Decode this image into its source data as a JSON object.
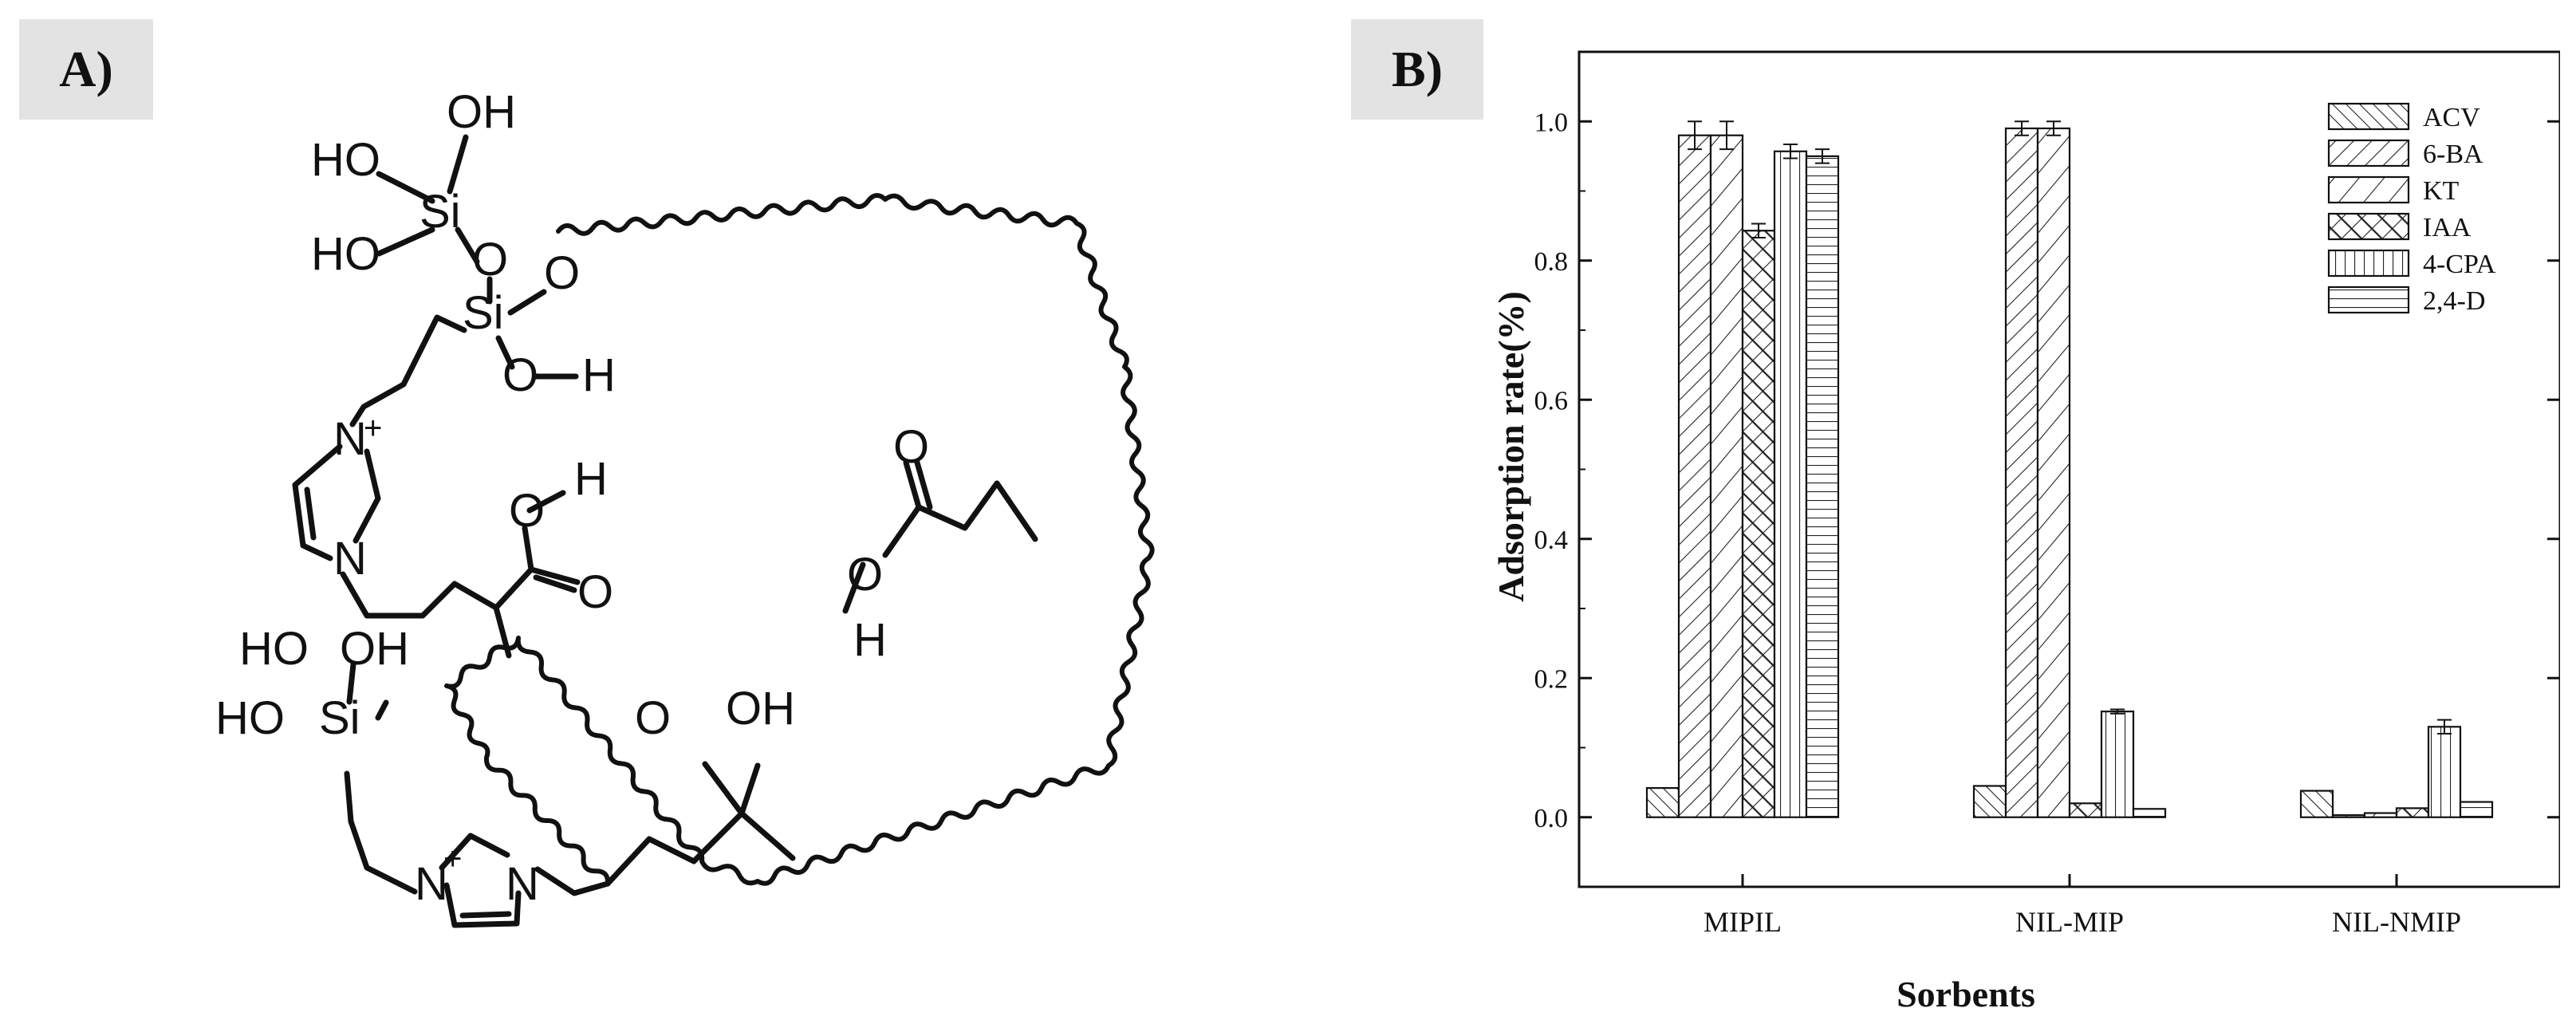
{
  "panels": {
    "a_label": "A)",
    "b_label": "B)"
  },
  "structure": {
    "atoms": [
      "OH",
      "HO",
      "Si",
      "O",
      "HO",
      "Si",
      "O",
      "O",
      "H",
      "N",
      "N",
      "+",
      "O",
      "H",
      "O",
      "HO",
      "OH",
      "HO",
      "Si",
      "O",
      "OH",
      "N",
      "N",
      "+",
      "O",
      "O",
      "H"
    ]
  },
  "chart_data": {
    "type": "bar",
    "xlabel": "Sorbents",
    "ylabel": "Adsorption rate(%)",
    "ylim": [
      -0.1,
      1.1
    ],
    "yticks": [
      "0.0",
      "0.2",
      "0.4",
      "0.6",
      "0.8",
      "1.0"
    ],
    "ytick_values": [
      0.0,
      0.2,
      0.4,
      0.6,
      0.8,
      1.0
    ],
    "categories": [
      "MIPIL",
      "NIL-MIP",
      "NIL-NMIP"
    ],
    "legend_position": "top-right",
    "series": [
      {
        "name": "ACV",
        "pattern": "diag-left",
        "values": [
          0.042,
          0.045,
          0.038
        ],
        "errors": [
          0,
          0,
          0
        ]
      },
      {
        "name": "6-BA",
        "pattern": "diag-right",
        "values": [
          0.98,
          0.99,
          0.003
        ],
        "errors": [
          0.02,
          0.01,
          0
        ]
      },
      {
        "name": "KT",
        "pattern": "diag-wide",
        "values": [
          0.98,
          0.99,
          0.006
        ],
        "errors": [
          0.02,
          0.01,
          0
        ]
      },
      {
        "name": "IAA",
        "pattern": "crosshatch",
        "values": [
          0.843,
          0.02,
          0.013
        ],
        "errors": [
          0.01,
          0,
          0
        ]
      },
      {
        "name": "4-CPA",
        "pattern": "horizontal",
        "values": [
          0.957,
          0.152,
          0.13
        ],
        "errors": [
          0.01,
          0.003,
          0.01
        ]
      },
      {
        "name": "2,4-D",
        "pattern": "vertical",
        "values": [
          0.95,
          0.012,
          0.022
        ],
        "errors": [
          0.01,
          0,
          0
        ]
      }
    ]
  }
}
